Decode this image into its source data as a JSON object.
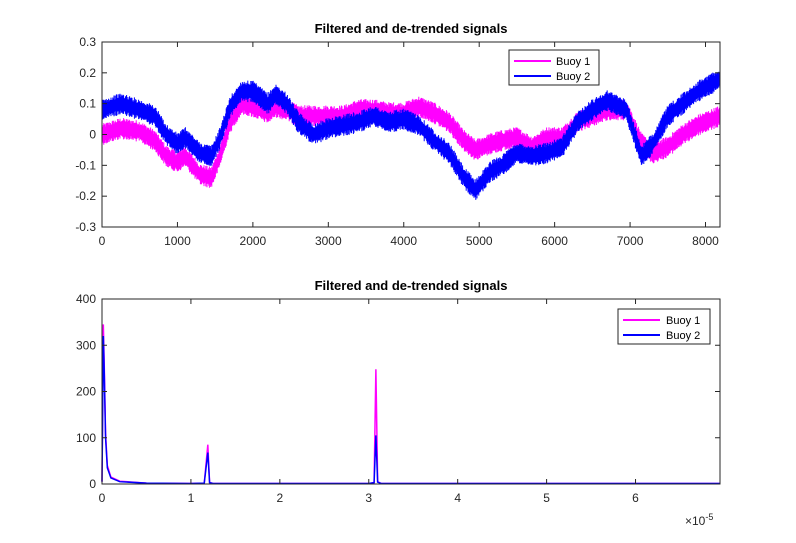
{
  "chart_data": [
    {
      "type": "line",
      "title": "Filtered and de-trended signals",
      "xlabel": "",
      "ylabel": "",
      "xlim": [
        0,
        8192
      ],
      "ylim": [
        -0.3,
        0.3
      ],
      "xticks": [
        "0",
        "1000",
        "2000",
        "3000",
        "4000",
        "5000",
        "6000",
        "7000",
        "8000"
      ],
      "yticks": [
        "-0.3",
        "-0.2",
        "-0.1",
        "0",
        "0.1",
        "0.2",
        "0.3"
      ],
      "grid": false,
      "legend_position": "top-right",
      "noise_band": 0.035,
      "series": [
        {
          "name": "Buoy 1",
          "color": "#ff00ff",
          "x": [
            0,
            250,
            500,
            700,
            850,
            1000,
            1100,
            1300,
            1450,
            1550,
            1700,
            1850,
            2000,
            2200,
            2300,
            2450,
            2600,
            2800,
            3000,
            3200,
            3400,
            3600,
            3800,
            4000,
            4200,
            4400,
            4600,
            4800,
            4950,
            5150,
            5300,
            5500,
            5700,
            5900,
            6100,
            6300,
            6500,
            6700,
            6950,
            7150,
            7300,
            7500,
            7700,
            7900,
            8192
          ],
          "y": [
            0.0,
            0.02,
            0.01,
            -0.02,
            -0.07,
            -0.09,
            -0.07,
            -0.13,
            -0.14,
            -0.08,
            0.04,
            0.1,
            0.09,
            0.07,
            0.09,
            0.08,
            0.06,
            0.06,
            0.06,
            0.06,
            0.08,
            0.08,
            0.07,
            0.07,
            0.09,
            0.07,
            0.04,
            -0.02,
            -0.05,
            -0.03,
            -0.02,
            -0.01,
            -0.04,
            -0.01,
            -0.01,
            0.04,
            0.06,
            0.08,
            0.08,
            -0.03,
            -0.06,
            -0.04,
            0.0,
            0.03,
            0.06
          ]
        },
        {
          "name": "Buoy 2",
          "color": "#0000ff",
          "x": [
            0,
            250,
            500,
            700,
            850,
            1000,
            1100,
            1300,
            1450,
            1550,
            1700,
            1850,
            2000,
            2200,
            2300,
            2450,
            2600,
            2800,
            3000,
            3200,
            3400,
            3600,
            3800,
            4000,
            4200,
            4400,
            4600,
            4800,
            4950,
            5150,
            5300,
            5500,
            5700,
            5900,
            6100,
            6300,
            6500,
            6700,
            6950,
            7150,
            7300,
            7500,
            7700,
            7900,
            8192
          ],
          "y": [
            0.08,
            0.1,
            0.08,
            0.06,
            0.0,
            -0.03,
            -0.01,
            -0.06,
            -0.07,
            -0.02,
            0.09,
            0.14,
            0.14,
            0.1,
            0.13,
            0.1,
            0.04,
            0.0,
            0.02,
            0.03,
            0.04,
            0.06,
            0.04,
            0.05,
            0.03,
            -0.02,
            -0.06,
            -0.14,
            -0.18,
            -0.12,
            -0.1,
            -0.06,
            -0.07,
            -0.06,
            -0.04,
            0.04,
            0.08,
            0.11,
            0.08,
            -0.07,
            -0.03,
            0.06,
            0.1,
            0.14,
            0.18
          ]
        }
      ]
    },
    {
      "type": "line",
      "title": "Filtered and de-trended signals",
      "xlabel": "",
      "ylabel": "",
      "xlim": [
        0,
        6.95
      ],
      "ylim": [
        0,
        400
      ],
      "x_exponent_label": "×10",
      "x_exponent_power": "-5",
      "xticks": [
        "0",
        "1",
        "2",
        "3",
        "4",
        "5",
        "6"
      ],
      "yticks": [
        "0",
        "100",
        "200",
        "300",
        "400"
      ],
      "grid": false,
      "legend_position": "top-right",
      "series": [
        {
          "name": "Buoy 1",
          "color": "#ff00ff",
          "x": [
            0,
            0.015,
            0.025,
            0.04,
            0.06,
            0.1,
            0.2,
            0.5,
            1.0,
            1.15,
            1.19,
            1.21,
            1.25,
            2.0,
            3.0,
            3.06,
            3.08,
            3.1,
            3.14,
            4.0,
            5.0,
            6.0,
            6.95
          ],
          "y": [
            5,
            345,
            260,
            110,
            40,
            15,
            6,
            2,
            1,
            2,
            85,
            3,
            1,
            1,
            1,
            3,
            248,
            5,
            1,
            1,
            1,
            1,
            1
          ]
        },
        {
          "name": "Buoy 2",
          "color": "#0000ff",
          "x": [
            0,
            0.015,
            0.025,
            0.04,
            0.06,
            0.1,
            0.2,
            0.5,
            1.0,
            1.15,
            1.19,
            1.21,
            1.25,
            2.0,
            3.0,
            3.06,
            3.08,
            3.1,
            3.14,
            4.0,
            5.0,
            6.0,
            6.95
          ],
          "y": [
            5,
            320,
            245,
            100,
            35,
            13,
            5,
            2,
            1,
            2,
            68,
            3,
            1,
            1,
            1,
            3,
            105,
            4,
            1,
            1,
            1,
            1,
            1
          ]
        }
      ]
    }
  ]
}
